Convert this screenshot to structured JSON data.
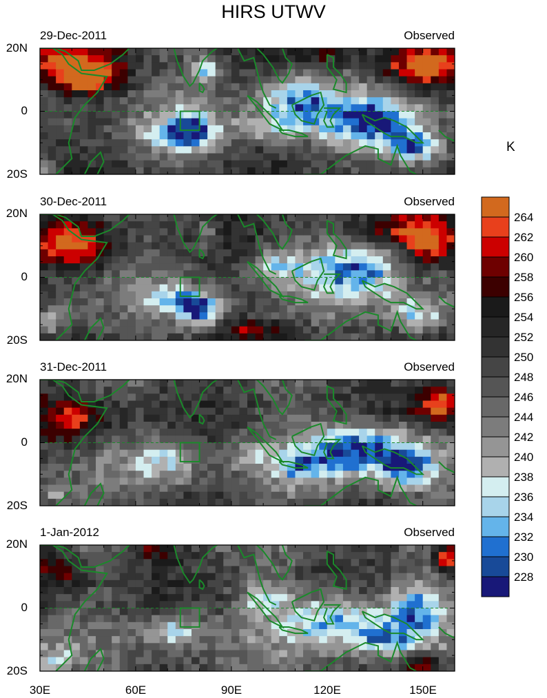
{
  "title": "HIRS UTWV",
  "unit": "K",
  "lat_labels": [
    "20N",
    "0",
    "20S"
  ],
  "lon_labels": [
    "30E",
    "60E",
    "90E",
    "120E",
    "150E"
  ],
  "panels": [
    {
      "date": "29-Dec-2011",
      "source": "Observed"
    },
    {
      "date": "30-Dec-2011",
      "source": "Observed"
    },
    {
      "date": "31-Dec-2011",
      "source": "Observed"
    },
    {
      "date": "1-Jan-2012",
      "source": "Observed"
    }
  ],
  "colorbar": {
    "labels": [
      "264",
      "262",
      "260",
      "258",
      "256",
      "254",
      "252",
      "250",
      "248",
      "246",
      "244",
      "242",
      "240",
      "238",
      "236",
      "234",
      "232",
      "230",
      "228"
    ],
    "colors": [
      "#d2691e",
      "#e8401c",
      "#cc0000",
      "#6e0000",
      "#3c0000",
      "#1a1a1a",
      "#262626",
      "#333333",
      "#454545",
      "#555555",
      "#686868",
      "#7c7c7c",
      "#959595",
      "#b0b0b0",
      "#d4eef0",
      "#a8d4ea",
      "#64b4ea",
      "#2070d0",
      "#184a98",
      "#181878"
    ]
  },
  "map": {
    "lon_range": [
      30,
      160
    ],
    "lat_range": [
      -20,
      20
    ],
    "equator_line": "dashed",
    "coastline_color": "#1a8a2a",
    "box_region": {
      "lon": [
        74,
        80
      ],
      "lat": [
        -6,
        0
      ]
    }
  }
}
